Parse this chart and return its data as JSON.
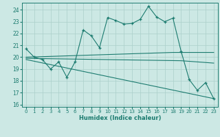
{
  "xlabel": "Humidex (Indice chaleur)",
  "bg_color": "#cce8e4",
  "grid_color": "#aacfca",
  "line_color": "#1a7a6e",
  "xlim": [
    -0.5,
    23.5
  ],
  "ylim": [
    15.8,
    24.6
  ],
  "yticks": [
    16,
    17,
    18,
    19,
    20,
    21,
    22,
    23,
    24
  ],
  "xticks": [
    0,
    1,
    2,
    3,
    4,
    5,
    6,
    7,
    8,
    9,
    10,
    11,
    12,
    13,
    14,
    15,
    16,
    17,
    18,
    19,
    20,
    21,
    22,
    23
  ],
  "series1_x": [
    0,
    1,
    2,
    3,
    4,
    5,
    6,
    7,
    8,
    9,
    10,
    11,
    12,
    13,
    14,
    15,
    16,
    17,
    18,
    19,
    20,
    21,
    22,
    23
  ],
  "series1_y": [
    20.7,
    20.0,
    19.8,
    19.0,
    19.6,
    18.3,
    19.6,
    22.3,
    21.8,
    20.8,
    23.35,
    23.1,
    22.8,
    22.85,
    23.2,
    24.3,
    23.4,
    23.0,
    23.3,
    20.5,
    18.1,
    17.2,
    17.85,
    16.5
  ],
  "series2_x": [
    0,
    18,
    23
  ],
  "series2_y": [
    20.0,
    20.4,
    20.4
  ],
  "series3_x": [
    0,
    19,
    23
  ],
  "series3_y": [
    19.9,
    19.7,
    19.5
  ],
  "series4_x": [
    0,
    23
  ],
  "series4_y": [
    19.8,
    16.5
  ],
  "figsize": [
    3.2,
    2.0
  ],
  "dpi": 100
}
